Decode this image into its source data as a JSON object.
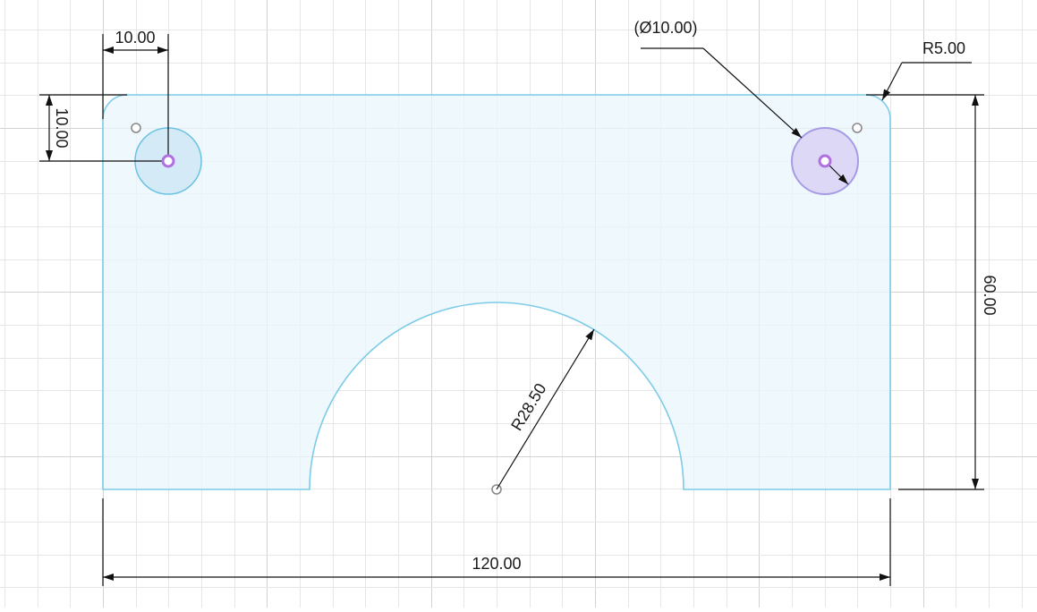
{
  "sketch": {
    "colors": {
      "background": "#ffffff",
      "grid_minor": "#e6e6e6",
      "grid_major": "#d2d2d2",
      "profile_fill": "#e9f5fc",
      "profile_stroke": "#7ccbe8",
      "hole_fill": "#d4ebf7",
      "hole_stroke": "#6cc2e2",
      "selected_circle_stroke": "#a69ce6",
      "selected_circle_fill": "#ddd8f5",
      "center_point": "#b070e0",
      "dimension_line": "#111111",
      "construction_point": "#8a8a8a"
    },
    "dimensions": {
      "hole_offset_x": "10.00",
      "hole_offset_y": "10.00",
      "hole_diameter": "(Ø10.00)",
      "corner_radius": "R5.00",
      "height": "60.00",
      "width": "120.00",
      "cutout_radius": "R28.50"
    }
  }
}
